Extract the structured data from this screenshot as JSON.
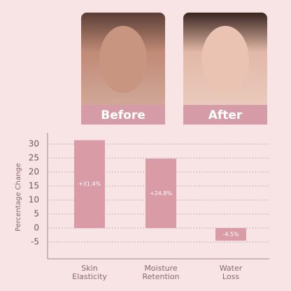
{
  "photos": {
    "before": "Before",
    "after": "After"
  },
  "chart_data": {
    "type": "bar",
    "y_label": "Percentage Change",
    "categories": [
      "Skin Elasticity",
      "Moisture Retention",
      "Water Loss"
    ],
    "values": [
      31.4,
      24.8,
      -4.5
    ],
    "value_labels": [
      "+31.4%",
      "+24.8%",
      "-4.5%"
    ],
    "color": "#d99ba6",
    "ylim": [
      -11,
      34
    ],
    "yticks": [
      -5,
      0,
      5,
      10,
      15,
      20,
      25,
      30
    ],
    "grid": true
  }
}
